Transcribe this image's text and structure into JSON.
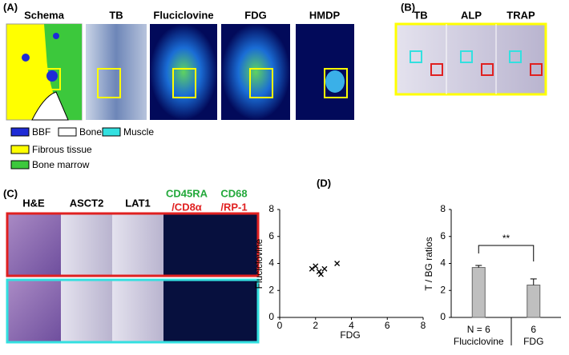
{
  "panel_labels": [
    "(A)",
    "(B)",
    "(C)",
    "(D)"
  ],
  "panel_a": {
    "columns": [
      "Schema",
      "TB",
      "Fluciclovine",
      "FDG",
      "HMDP"
    ],
    "legend": [
      "BBF",
      "Bone",
      "Muscle",
      "Fibrous tissue",
      "Bone marrow"
    ]
  },
  "panel_b": {
    "columns": [
      "TB",
      "ALP",
      "TRAP"
    ]
  },
  "panel_c": {
    "columns": [
      "H&E",
      "ASCT2",
      "LAT1"
    ],
    "stains": [
      {
        "top": "CD45RA",
        "bottom": "/CD8α"
      },
      {
        "top": "CD68",
        "bottom": "/RP-1"
      }
    ]
  },
  "chart_data": [
    {
      "type": "scatter",
      "x_label": "FDG",
      "y_label": "Fluciclovine",
      "marker": "x",
      "x": [
        1.8,
        2.0,
        2.2,
        2.3,
        2.5,
        3.2
      ],
      "y": [
        3.6,
        3.8,
        3.4,
        3.2,
        3.6,
        4.0
      ],
      "xlim": [
        0,
        8
      ],
      "xticks": [
        0,
        2,
        4,
        6,
        8
      ],
      "ylim": [
        0,
        8
      ],
      "yticks": [
        0,
        2,
        4,
        6,
        8
      ]
    },
    {
      "type": "bar",
      "y_label": "T / BG ratios",
      "categories": [
        "Fluciclovine",
        "FDG"
      ],
      "sample_sizes": [
        "N = 6",
        "6"
      ],
      "values": [
        3.7,
        2.4
      ],
      "errors": [
        0.15,
        0.45
      ],
      "color": "#bfbfbf",
      "ylim": [
        0,
        8
      ],
      "yticks": [
        0,
        2,
        4,
        6,
        8
      ],
      "annotation": "**"
    }
  ]
}
